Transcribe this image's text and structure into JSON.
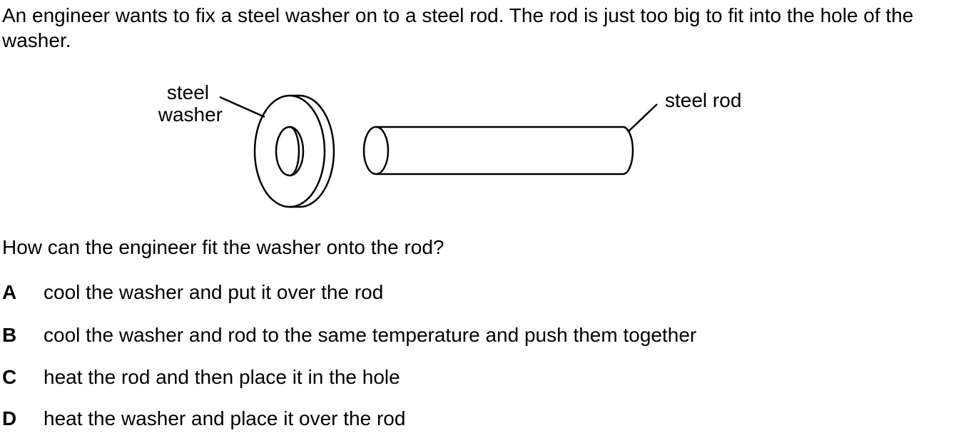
{
  "intro": "An engineer wants to fix a steel washer on to a steel rod. The rod is just too big to fit into the hole of the washer.",
  "diagram": {
    "washer_label_line1": "steel",
    "washer_label_line2": "washer",
    "rod_label": "steel rod"
  },
  "question": "How can the engineer fit the washer onto the rod?",
  "options": [
    {
      "letter": "A",
      "text": "cool the washer and put it over the rod"
    },
    {
      "letter": "B",
      "text": "cool the washer and rod to the same temperature and push them together"
    },
    {
      "letter": "C",
      "text": "heat the rod and then place it in the hole"
    },
    {
      "letter": "D",
      "text": "heat the washer and place it over the rod"
    }
  ]
}
